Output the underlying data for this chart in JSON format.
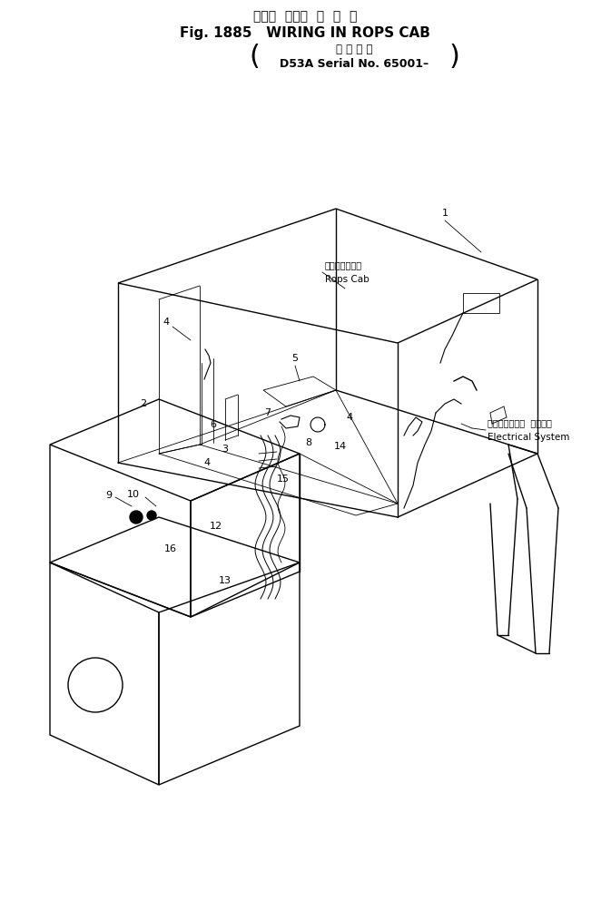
{
  "title_jp": "ロプス  ギャブ  内  配  線",
  "title_en": "Fig. 1885   WIRING IN ROPS CAB",
  "sub_jp": "通 用 号 機",
  "sub_en": "D53A Serial No. 65001–",
  "label_rops_jp": "ロップスキャブ",
  "label_rops_en": "Rops Cab",
  "label_elec_jp": "エレクトリカル  システム",
  "label_elec_en": "Electrical System",
  "bg_color": "#ffffff",
  "lc": "#000000",
  "fig_width": 6.73,
  "fig_height": 10.14,
  "dpi": 100
}
